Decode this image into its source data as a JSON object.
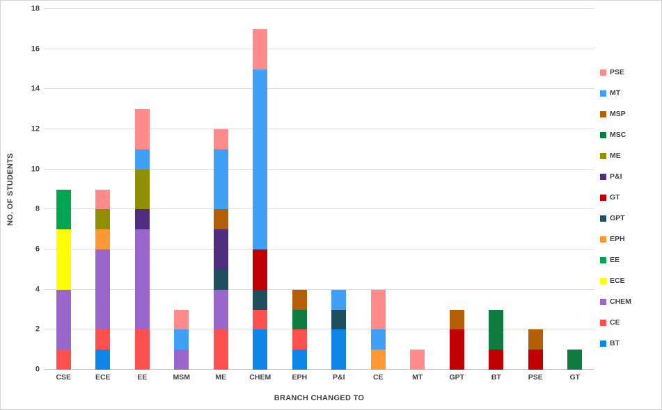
{
  "chart_data": {
    "type": "bar",
    "stacked": true,
    "title": "",
    "xlabel": "BRANCH CHANGED TO",
    "ylabel": "NO. OF STUDENTS",
    "ylim": [
      0,
      18
    ],
    "ytick_step": 2,
    "grid": true,
    "categories": [
      "CSE",
      "ECE",
      "EE",
      "MSM",
      "ME",
      "CHEM",
      "EPH",
      "P&I",
      "CE",
      "MT",
      "GPT",
      "BT",
      "PSE",
      "GT"
    ],
    "legend": {
      "position": "right",
      "items_top_to_bottom": [
        "PSE",
        "MT",
        "MSP",
        "MSC",
        "ME",
        "P&I",
        "GT",
        "GPT",
        "EPH",
        "EE",
        "ECE",
        "CHEM",
        "CE",
        "BT"
      ]
    },
    "series_colors": {
      "PSE": "#FF8B8B",
      "MT": "#3FA0F5",
      "MSP": "#B45F06",
      "MSC": "#0E7C3E",
      "ME": "#8F8F00",
      "P&I": "#4F2D7F",
      "GT": "#C00000",
      "GPT": "#1F4E5F",
      "EPH": "#FF9933",
      "EE": "#00A651",
      "ECE": "#FFFF00",
      "CHEM": "#9966CC",
      "CE": "#FF5050",
      "BT": "#0E86E8"
    },
    "bars": [
      {
        "category": "CSE",
        "total": 9,
        "segments": [
          {
            "series": "CE",
            "value": 1
          },
          {
            "series": "CHEM",
            "value": 3
          },
          {
            "series": "ECE",
            "value": 3
          },
          {
            "series": "EE",
            "value": 2
          }
        ]
      },
      {
        "category": "ECE",
        "total": 9,
        "segments": [
          {
            "series": "BT",
            "value": 1
          },
          {
            "series": "CE",
            "value": 1
          },
          {
            "series": "CHEM",
            "value": 4
          },
          {
            "series": "EPH",
            "value": 1
          },
          {
            "series": "ME",
            "value": 1
          },
          {
            "series": "PSE",
            "value": 1
          }
        ]
      },
      {
        "category": "EE",
        "total": 13,
        "segments": [
          {
            "series": "CE",
            "value": 2
          },
          {
            "series": "CHEM",
            "value": 5
          },
          {
            "series": "P&I",
            "value": 1
          },
          {
            "series": "ME",
            "value": 2
          },
          {
            "series": "MT",
            "value": 1
          },
          {
            "series": "PSE",
            "value": 2
          }
        ]
      },
      {
        "category": "MSM",
        "total": 3,
        "segments": [
          {
            "series": "CHEM",
            "value": 1
          },
          {
            "series": "MT",
            "value": 1
          },
          {
            "series": "PSE",
            "value": 1
          }
        ]
      },
      {
        "category": "ME",
        "total": 12,
        "segments": [
          {
            "series": "CE",
            "value": 2
          },
          {
            "series": "CHEM",
            "value": 2
          },
          {
            "series": "GPT",
            "value": 1
          },
          {
            "series": "P&I",
            "value": 2
          },
          {
            "series": "MSP",
            "value": 1
          },
          {
            "series": "MT",
            "value": 3
          },
          {
            "series": "PSE",
            "value": 1
          }
        ]
      },
      {
        "category": "CHEM",
        "total": 17,
        "segments": [
          {
            "series": "BT",
            "value": 2
          },
          {
            "series": "CE",
            "value": 1
          },
          {
            "series": "GPT",
            "value": 1
          },
          {
            "series": "GT",
            "value": 2
          },
          {
            "series": "MT",
            "value": 9
          },
          {
            "series": "PSE",
            "value": 2
          }
        ]
      },
      {
        "category": "EPH",
        "total": 4,
        "segments": [
          {
            "series": "BT",
            "value": 1
          },
          {
            "series": "CE",
            "value": 1
          },
          {
            "series": "MSC",
            "value": 1
          },
          {
            "series": "MSP",
            "value": 1
          }
        ]
      },
      {
        "category": "P&I",
        "total": 4,
        "segments": [
          {
            "series": "BT",
            "value": 2
          },
          {
            "series": "GPT",
            "value": 1
          },
          {
            "series": "MT",
            "value": 1
          }
        ]
      },
      {
        "category": "CE",
        "total": 4,
        "segments": [
          {
            "series": "EPH",
            "value": 1
          },
          {
            "series": "MT",
            "value": 1
          },
          {
            "series": "PSE",
            "value": 2
          }
        ]
      },
      {
        "category": "MT",
        "total": 1,
        "segments": [
          {
            "series": "PSE",
            "value": 1
          }
        ]
      },
      {
        "category": "GPT",
        "total": 3,
        "segments": [
          {
            "series": "GT",
            "value": 2
          },
          {
            "series": "MSP",
            "value": 1
          }
        ]
      },
      {
        "category": "BT",
        "total": 3,
        "segments": [
          {
            "series": "GT",
            "value": 1
          },
          {
            "series": "MSC",
            "value": 2
          }
        ]
      },
      {
        "category": "PSE",
        "total": 2,
        "segments": [
          {
            "series": "GT",
            "value": 1
          },
          {
            "series": "MSP",
            "value": 1
          }
        ]
      },
      {
        "category": "GT",
        "total": 1,
        "segments": [
          {
            "series": "MSC",
            "value": 1
          }
        ]
      }
    ]
  }
}
